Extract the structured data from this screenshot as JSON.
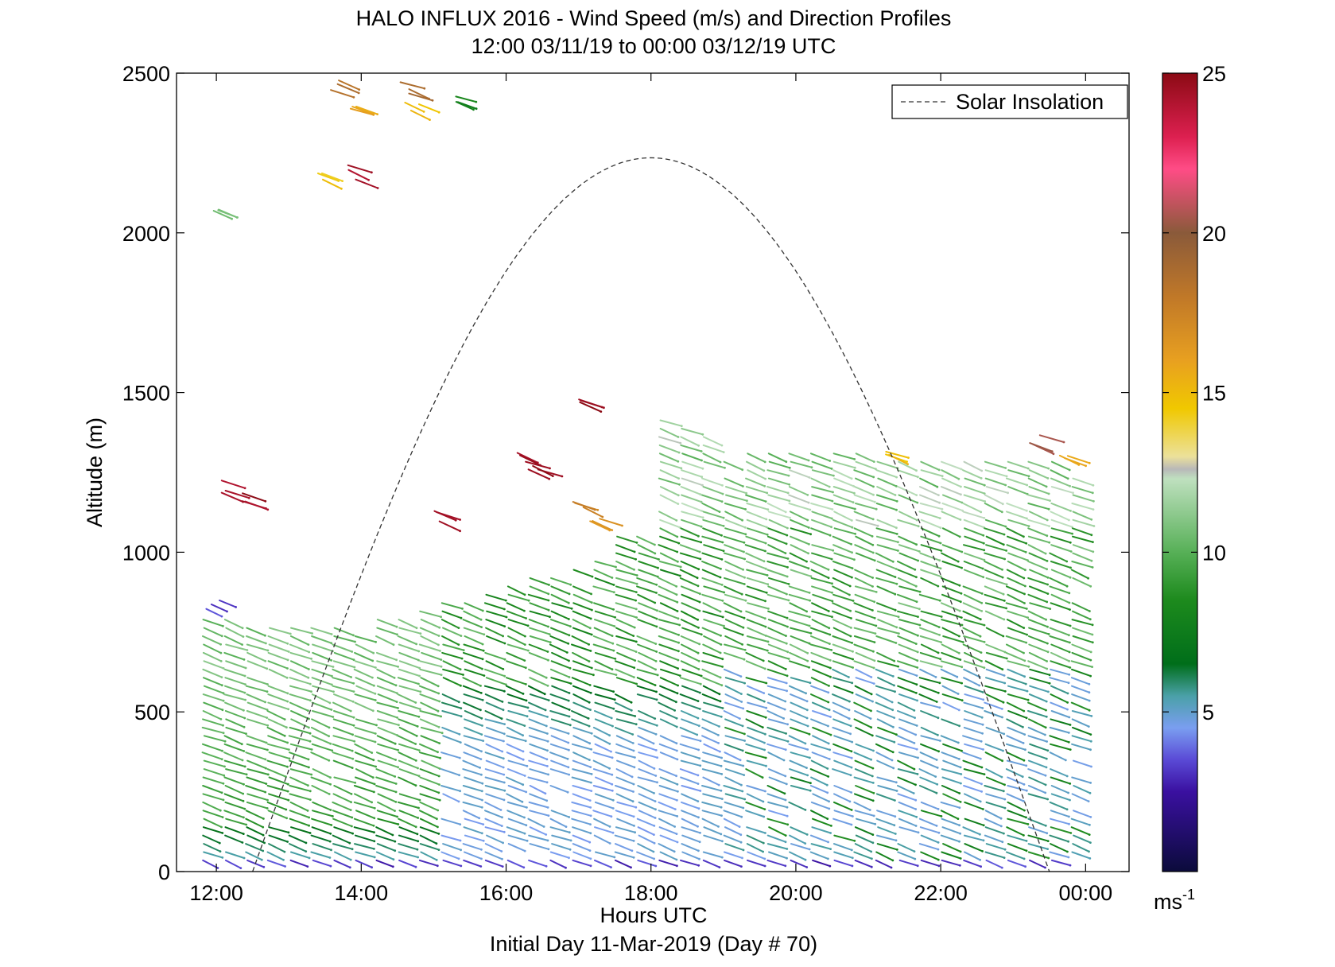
{
  "chart_data": {
    "type": "line",
    "title_line1": "HALO INFLUX 2016 - Wind Speed (m/s) and Direction Profiles",
    "title_line2": "12:00 03/11/19 to 00:00 03/12/19  UTC",
    "xlabel": "Hours UTC",
    "xlabel_sub": "Initial Day 11-Mar-2019 (Day # 70)",
    "ylabel": "Altitude (m)",
    "x_unit": "hours",
    "xlim": [
      11.45,
      24.6
    ],
    "ylim": [
      0,
      2500
    ],
    "x_ticks": [
      {
        "value": 12,
        "label": "12:00"
      },
      {
        "value": 14,
        "label": "14:00"
      },
      {
        "value": 16,
        "label": "16:00"
      },
      {
        "value": 18,
        "label": "18:00"
      },
      {
        "value": 20,
        "label": "20:00"
      },
      {
        "value": 22,
        "label": "22:00"
      },
      {
        "value": 24,
        "label": "00:00"
      }
    ],
    "y_ticks": [
      {
        "value": 0,
        "label": "0"
      },
      {
        "value": 500,
        "label": "500"
      },
      {
        "value": 1000,
        "label": "1000"
      },
      {
        "value": 1500,
        "label": "1500"
      },
      {
        "value": 2000,
        "label": "2000"
      },
      {
        "value": 2500,
        "label": "2500"
      }
    ],
    "legend": {
      "label": "Solar Insolation",
      "placement": "top-right",
      "style": "dashed",
      "color": "#000000"
    },
    "solar_insolation": {
      "name": "Solar Insolation",
      "start_hour": 12.5,
      "end_hour": 23.5,
      "peak_hour": 18.0,
      "peak_altitude": 2235
    },
    "colorbar": {
      "min": 0,
      "max": 25,
      "ticks": [
        {
          "value": 5,
          "label": "5"
        },
        {
          "value": 10,
          "label": "10"
        },
        {
          "value": 15,
          "label": "15"
        },
        {
          "value": 20,
          "label": "20"
        },
        {
          "value": 25,
          "label": "25"
        }
      ],
      "unit_base": "ms",
      "unit_exp": "-1",
      "stops": [
        {
          "v": 0,
          "c": "#0b0b3b"
        },
        {
          "v": 2.5,
          "c": "#3a10a0"
        },
        {
          "v": 3.5,
          "c": "#5a4ad6"
        },
        {
          "v": 4.5,
          "c": "#7a9ef0"
        },
        {
          "v": 5.5,
          "c": "#4aa0a8"
        },
        {
          "v": 6.5,
          "c": "#006e1a"
        },
        {
          "v": 8.5,
          "c": "#1d8a1d"
        },
        {
          "v": 10,
          "c": "#57b057"
        },
        {
          "v": 12.3,
          "c": "#bfe0bf"
        },
        {
          "v": 12.6,
          "c": "#b8b8b8"
        },
        {
          "v": 13.0,
          "c": "#ece19a"
        },
        {
          "v": 14.5,
          "c": "#f0c800"
        },
        {
          "v": 16,
          "c": "#e8a020"
        },
        {
          "v": 18,
          "c": "#c07828"
        },
        {
          "v": 20,
          "c": "#8a5a3a"
        },
        {
          "v": 22,
          "c": "#ff4c86"
        },
        {
          "v": 23,
          "c": "#dd2050"
        },
        {
          "v": 25,
          "c": "#8b0a14"
        }
      ]
    },
    "wind_barbs": {
      "description_unit": "m/s",
      "lower_layer_top": 800,
      "surface_speed": 3,
      "profile_columns_start": 11.82,
      "profile_columns_end": 23.88,
      "profile_columns_step": 0.3,
      "levels_step": 26,
      "sparse_features": [
        {
          "hour": 12.1,
          "alt": 1200,
          "speed": 24.5
        },
        {
          "hour": 12.4,
          "alt": 1165,
          "speed": 24.5
        },
        {
          "hour": 12.0,
          "alt": 2050,
          "speed": 10.5
        },
        {
          "hour": 11.95,
          "alt": 820,
          "speed": 3.5
        },
        {
          "hour": 13.4,
          "alt": 2190,
          "speed": 14.5
        },
        {
          "hour": 13.9,
          "alt": 2190,
          "speed": 24.5
        },
        {
          "hour": 13.6,
          "alt": 2450,
          "speed": 18.5
        },
        {
          "hour": 13.9,
          "alt": 2400,
          "speed": 16.0
        },
        {
          "hour": 14.6,
          "alt": 2460,
          "speed": 19.0
        },
        {
          "hour": 14.7,
          "alt": 2410,
          "speed": 15.0
        },
        {
          "hour": 15.3,
          "alt": 2410,
          "speed": 8.0
        },
        {
          "hour": 16.2,
          "alt": 1300,
          "speed": 24.5
        },
        {
          "hour": 16.4,
          "alt": 1280,
          "speed": 24.5
        },
        {
          "hour": 17.1,
          "alt": 1450,
          "speed": 24.5
        },
        {
          "hour": 15.1,
          "alt": 1100,
          "speed": 24.5
        },
        {
          "hour": 17.2,
          "alt": 1080,
          "speed": 16.5
        },
        {
          "hour": 17.0,
          "alt": 1150,
          "speed": 17.5
        },
        {
          "hour": 21.3,
          "alt": 1330,
          "speed": 14.8
        },
        {
          "hour": 23.3,
          "alt": 1340,
          "speed": 20.5
        },
        {
          "hour": 23.7,
          "alt": 1300,
          "speed": 16.0
        }
      ]
    }
  }
}
